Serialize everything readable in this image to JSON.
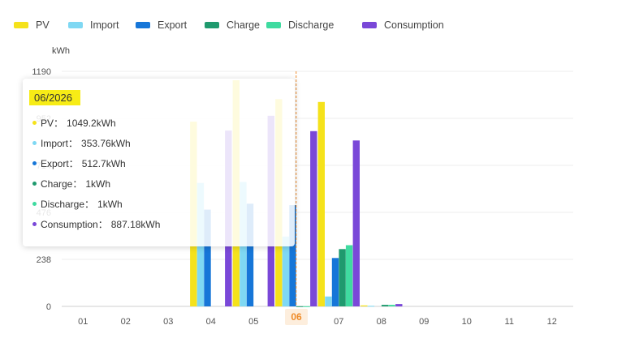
{
  "legend": [
    {
      "name": "PV",
      "color": "#f5e21b"
    },
    {
      "name": "Import",
      "color": "#7fd8f3"
    },
    {
      "name": "Export",
      "color": "#1676d8"
    },
    {
      "name": "Charge",
      "color": "#1f9a6e"
    },
    {
      "name": "Discharge",
      "color": "#3fdba0"
    },
    {
      "name": "Consumption",
      "color": "#7a48d8"
    }
  ],
  "chart_data": {
    "type": "bar",
    "ylabel": "kWh",
    "yticks": [
      "0",
      "238",
      "476",
      "714",
      "952",
      "1190"
    ],
    "ylim": [
      0,
      1190
    ],
    "categories": [
      "01",
      "02",
      "03",
      "04",
      "05",
      "06",
      "07",
      "08",
      "09",
      "10",
      "11",
      "12"
    ],
    "active_category": "06",
    "grid": true,
    "legend_position": "top-left",
    "series": [
      {
        "name": "PV",
        "color": "#f5e21b",
        "values": [
          0,
          0,
          0,
          935,
          1145,
          1049.2,
          1035,
          5,
          0,
          0,
          0,
          0
        ]
      },
      {
        "name": "Import",
        "color": "#7fd8f3",
        "values": [
          0,
          0,
          0,
          625,
          630,
          353.76,
          50,
          3,
          0,
          0,
          0,
          0
        ]
      },
      {
        "name": "Export",
        "color": "#1676d8",
        "values": [
          0,
          0,
          0,
          490,
          520,
          512.7,
          245,
          0,
          0,
          0,
          0,
          0
        ]
      },
      {
        "name": "Charge",
        "color": "#1f9a6e",
        "values": [
          0,
          0,
          0,
          0,
          0,
          1,
          290,
          8,
          0,
          0,
          0,
          0
        ]
      },
      {
        "name": "Discharge",
        "color": "#3fdba0",
        "values": [
          0,
          0,
          0,
          0,
          0,
          1,
          310,
          8,
          0,
          0,
          0,
          0
        ]
      },
      {
        "name": "Consumption",
        "color": "#7a48d8",
        "values": [
          0,
          0,
          0,
          890,
          965,
          887.18,
          840,
          12,
          0,
          0,
          0,
          0
        ]
      }
    ]
  },
  "tooltip": {
    "title": "06/2026",
    "rows": [
      {
        "label": "PV：",
        "value": "1049.2kWh",
        "color": "#f5e21b"
      },
      {
        "label": "Import：",
        "value": "353.76kWh",
        "color": "#7fd8f3"
      },
      {
        "label": "Export：",
        "value": "512.7kWh",
        "color": "#1676d8"
      },
      {
        "label": "Charge：",
        "value": "1kWh",
        "color": "#1f9a6e"
      },
      {
        "label": "Discharge：",
        "value": "1kWh",
        "color": "#3fdba0"
      },
      {
        "label": "Consumption：",
        "value": "887.18kWh",
        "color": "#7a48d8"
      }
    ]
  }
}
